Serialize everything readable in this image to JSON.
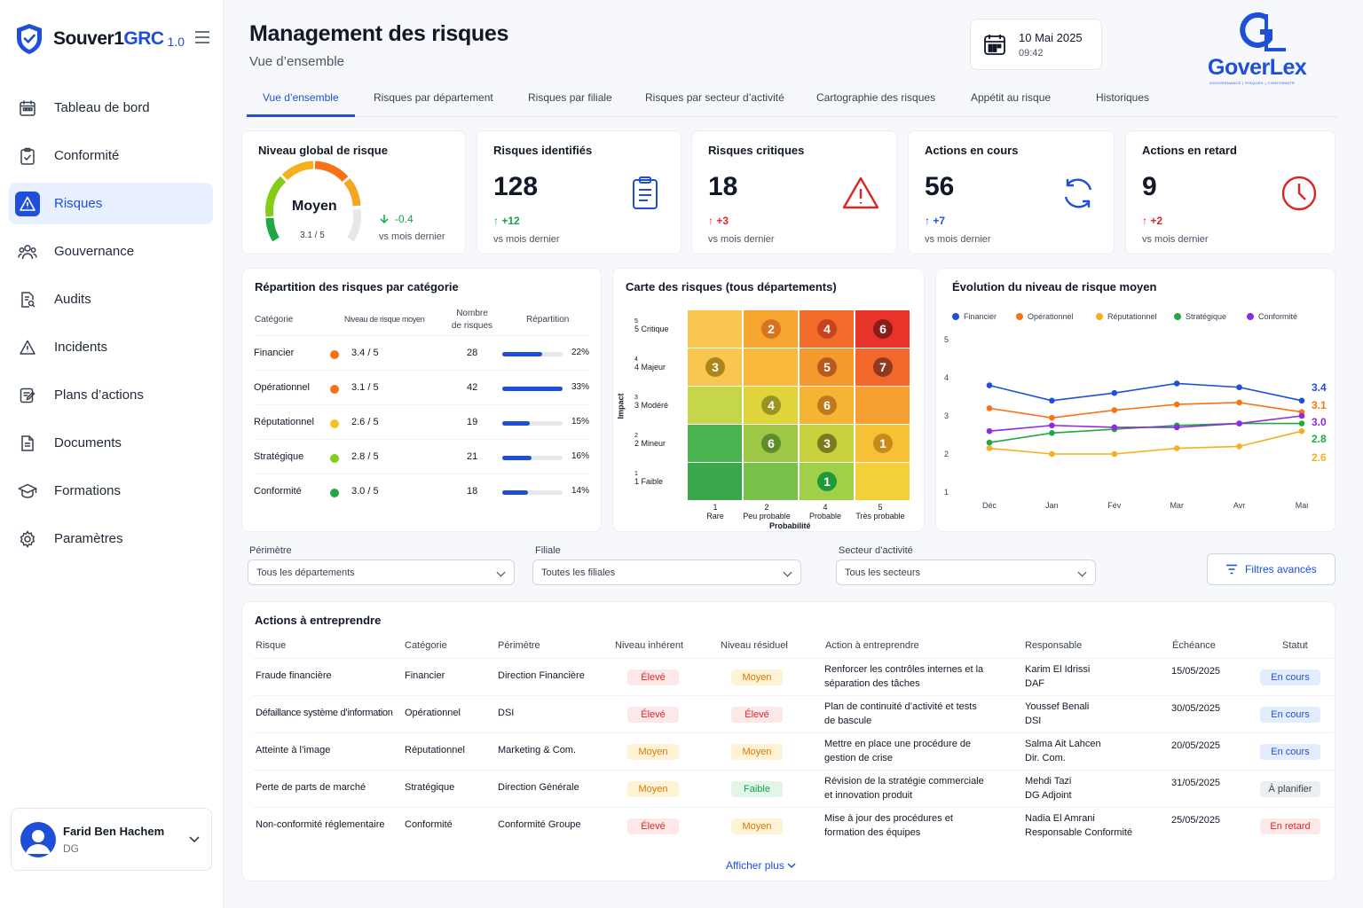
{
  "brand": {
    "name_a": "Souver1",
    "name_b": "GRC",
    "version": "1.0"
  },
  "sidebar": {
    "items": [
      {
        "label": "Tableau de bord",
        "icon": "dashboard-icon"
      },
      {
        "label": "Conformité",
        "icon": "clipboard-check-icon"
      },
      {
        "label": "Risques",
        "icon": "warning-icon",
        "active": true
      },
      {
        "label": "Gouvernance",
        "icon": "people-icon"
      },
      {
        "label": "Audits",
        "icon": "document-search-icon"
      },
      {
        "label": "Incidents",
        "icon": "alert-icon"
      },
      {
        "label": "Plans d’actions",
        "icon": "edit-list-icon"
      },
      {
        "label": "Documents",
        "icon": "document-icon"
      },
      {
        "label": "Formations",
        "icon": "graduation-icon"
      },
      {
        "label": "Paramètres",
        "icon": "gear-icon"
      }
    ]
  },
  "user": {
    "name": "Farid Ben Hachem",
    "role": "DG"
  },
  "header": {
    "title": "Management des risques",
    "subtitle": "Vue d’ensemble",
    "date": "10 Mai 2025",
    "time": "09:42"
  },
  "logo": {
    "text": "GoverLex",
    "tagline": "GOUVERNANCE | RISQUES | CONFORMITÉ"
  },
  "tabs": [
    "Vue d’ensemble",
    "Risques par département",
    "Risques par filiale",
    "Risques par secteur d’activité",
    "Cartographie des risques",
    "Appétit au risque",
    "Historiques"
  ],
  "kpis": {
    "global": {
      "title": "Niveau global de risque",
      "level": "Moyen",
      "score": "3.1 / 5",
      "score_value": 3.1,
      "delta": "-0.4",
      "vs": "vs mois dernier"
    },
    "identified": {
      "title": "Risques identifiés",
      "value": "128",
      "delta": "+12",
      "vs": "vs mois dernier"
    },
    "critical": {
      "title": "Risques critiques",
      "value": "18",
      "delta": "+3",
      "vs": "vs mois dernier"
    },
    "in_progress": {
      "title": "Actions en cours",
      "value": "56",
      "delta": "+7",
      "vs": "vs mois dernier"
    },
    "late": {
      "title": "Actions en retard",
      "value": "9",
      "delta": "+2",
      "vs": "vs mois dernier"
    }
  },
  "categories": {
    "title": "Répartition des risques par catégorie",
    "headers": {
      "cat": "Catégorie",
      "level": "Niveau de risque moyen",
      "count_a": "Nombre",
      "count_b": "de risques",
      "share": "Répartition"
    },
    "rows": [
      {
        "name": "Financier",
        "level": "3.4 / 5",
        "count": "28",
        "share": "22%",
        "share_value": 22,
        "color": "#f97316"
      },
      {
        "name": "Opérationnel",
        "level": "3.1 / 5",
        "count": "42",
        "share": "33%",
        "share_value": 33,
        "color": "#f97316"
      },
      {
        "name": "Réputationnel",
        "level": "2.6 / 5",
        "count": "19",
        "share": "15%",
        "share_value": 15,
        "color": "#fbbf24"
      },
      {
        "name": "Stratégique",
        "level": "2.8 / 5",
        "count": "21",
        "share": "16%",
        "share_value": 16,
        "color": "#84cc16"
      },
      {
        "name": "Conformité",
        "level": "3.0 / 5",
        "count": "18",
        "share": "14%",
        "share_value": 14,
        "color": "#22a745"
      }
    ]
  },
  "heatmap": {
    "title": "Carte des risques (tous départements)",
    "y_title": "Impact",
    "x_title": "Probabilité",
    "y_labels": [
      {
        "num": "5",
        "label": "5 Critique"
      },
      {
        "num": "4",
        "label": "4 Majeur"
      },
      {
        "num": "3",
        "label": "3 Modéré"
      },
      {
        "num": "2",
        "label": "2 Mineur"
      },
      {
        "num": "1",
        "label": "1 Faible"
      }
    ],
    "x_labels": [
      {
        "num": "1",
        "label": "Rare"
      },
      {
        "num": "2",
        "label": "Peu probable"
      },
      {
        "num": "4",
        "label": "Probable"
      },
      {
        "num": "5",
        "label": "Très probable"
      }
    ],
    "cells": [
      [
        "#f9c74f",
        "#f7a531",
        "#f26b2a",
        "#e8332a"
      ],
      [
        "#f9c74f",
        "#f9b93d",
        "#f59a2f",
        "#f2682a"
      ],
      [
        "#c6d64a",
        "#e0d43c",
        "#f5b534",
        "#f59f30"
      ],
      [
        "#4bb34f",
        "#9cc845",
        "#c7d23e",
        "#f7c135"
      ],
      [
        "#39a84a",
        "#79c04b",
        "#9fd048",
        "#f4d03a"
      ]
    ],
    "badges": [
      {
        "row": 0,
        "col": 1,
        "value": "2",
        "color": "#d9731d"
      },
      {
        "row": 0,
        "col": 2,
        "value": "4",
        "color": "#c6451e"
      },
      {
        "row": 0,
        "col": 3,
        "value": "6",
        "color": "#8a1d1a"
      },
      {
        "row": 1,
        "col": 0,
        "value": "3",
        "color": "#a9871c"
      },
      {
        "row": 1,
        "col": 2,
        "value": "5",
        "color": "#b95a1c"
      },
      {
        "row": 1,
        "col": 3,
        "value": "7",
        "color": "#8f3a20"
      },
      {
        "row": 2,
        "col": 1,
        "value": "4",
        "color": "#9b9320"
      },
      {
        "row": 2,
        "col": 2,
        "value": "6",
        "color": "#c07a1e"
      },
      {
        "row": 3,
        "col": 1,
        "value": "6",
        "color": "#5e8c2a"
      },
      {
        "row": 3,
        "col": 2,
        "value": "3",
        "color": "#7b7a1e"
      },
      {
        "row": 3,
        "col": 3,
        "value": "1",
        "color": "#c98a18"
      },
      {
        "row": 4,
        "col": 2,
        "value": "1",
        "color": "#1e9a3a"
      }
    ]
  },
  "chart_data": {
    "type": "line",
    "title": "Évolution du niveau de risque moyen",
    "categories": [
      "Déc",
      "Jan",
      "Fév",
      "Mar",
      "Avr",
      "Mai"
    ],
    "ylim": [
      1,
      5
    ],
    "yticks": [
      "1",
      "2",
      "3",
      "4",
      "5"
    ],
    "legend": "top",
    "series": [
      {
        "name": "Financier",
        "color": "#1f4fd8",
        "values": [
          3.8,
          3.4,
          3.6,
          3.85,
          3.75,
          3.4
        ],
        "end_label": "3.4"
      },
      {
        "name": "Opérationnel",
        "color": "#f97316",
        "values": [
          3.2,
          2.95,
          3.15,
          3.3,
          3.35,
          3.1
        ],
        "end_label": "3.1"
      },
      {
        "name": "Réputationnel",
        "color": "#f5b01e",
        "values": [
          2.15,
          2.0,
          2.0,
          2.15,
          2.2,
          2.6
        ],
        "end_label": "2.6"
      },
      {
        "name": "Stratégique",
        "color": "#22a745",
        "values": [
          2.3,
          2.55,
          2.65,
          2.75,
          2.8,
          2.8
        ],
        "end_label": "2.8"
      },
      {
        "name": "Conformité",
        "color": "#8b2be2",
        "values": [
          2.6,
          2.75,
          2.7,
          2.7,
          2.8,
          3.0
        ],
        "end_label": "3.0"
      }
    ]
  },
  "filters": {
    "perimetre": {
      "label": "Périmètre",
      "value": "Tous les départements"
    },
    "filiale": {
      "label": "Filiale",
      "value": "Toutes les filiales"
    },
    "secteur": {
      "label": "Secteur d’activité",
      "value": "Tous les secteurs"
    },
    "advanced": "Filtres avancés"
  },
  "actions": {
    "title": "Actions à entreprendre",
    "headers": [
      "Risque",
      "Catégorie",
      "Périmètre",
      "Niveau inhérent",
      "Niveau résiduel",
      "Action à entreprendre",
      "Responsable",
      "Échéance",
      "Statut"
    ],
    "rows": [
      {
        "risk": "Fraude financière",
        "cat": "Financier",
        "scope": "Direction Financière",
        "inh": "Élevé",
        "res": "Moyen",
        "action_a": "Renforcer les contrôles internes et la",
        "action_b": "séparation des tâches",
        "owner_a": "Karim El Idrissi",
        "owner_b": "DAF",
        "due": "15/05/2025",
        "status": "En cours"
      },
      {
        "risk": "Défaillance système d’information",
        "cat": "Opérationnel",
        "scope": "DSI",
        "inh": "Élevé",
        "res": "Élevé",
        "action_a": "Plan de continuité d’activité et tests",
        "action_b": "de bascule",
        "owner_a": "Youssef Benali",
        "owner_b": "DSI",
        "due": "30/05/2025",
        "status": "En cours"
      },
      {
        "risk": "Atteinte à l’image",
        "cat": "Réputationnel",
        "scope": "Marketing & Com.",
        "inh": "Moyen",
        "res": "Moyen",
        "action_a": "Mettre en place une procédure de",
        "action_b": "gestion de crise",
        "owner_a": "Salma Ait Lahcen",
        "owner_b": "Dir. Com.",
        "due": "20/05/2025",
        "status": "En cours"
      },
      {
        "risk": "Perte de parts de marché",
        "cat": "Stratégique",
        "scope": "Direction Générale",
        "inh": "Moyen",
        "res": "Faible",
        "action_a": "Révision de la stratégie commerciale",
        "action_b": "et innovation produit",
        "owner_a": "Mehdi Tazi",
        "owner_b": "DG Adjoint",
        "due": "31/05/2025",
        "status": "À planifier"
      },
      {
        "risk": "Non-conformité réglementaire",
        "cat": "Conformité",
        "scope": "Conformité Groupe",
        "inh": "Élevé",
        "res": "Moyen",
        "action_a": "Mise à jour des procédures et",
        "action_b": "formation des équipes",
        "owner_a": "Nadia El Amrani",
        "owner_b": "Responsable Conformité",
        "due": "25/05/2025",
        "status": "En retard"
      }
    ],
    "more": "Afficher plus"
  },
  "colors": {
    "primary": "#1f4fd8",
    "danger": "#dc2626",
    "success": "#16a34a"
  }
}
